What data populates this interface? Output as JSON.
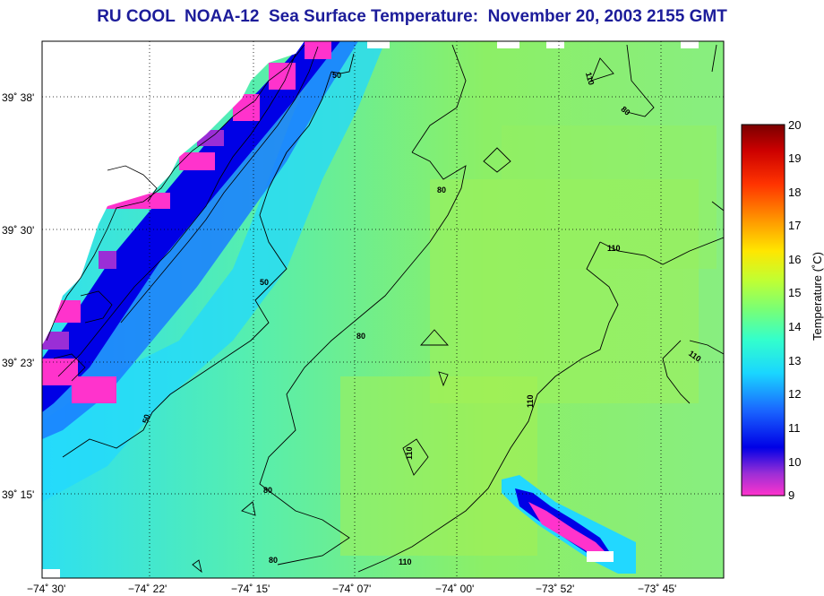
{
  "title": "RU COOL  NOAA-12  Sea Surface Temperature:  November 20, 2003 2155 GMT",
  "lat_labels": [
    "39˚ 38'",
    "39˚ 30'",
    "39˚ 23'",
    "39˚ 15'"
  ],
  "lon_labels": [
    "−74˚ 30'",
    "−74˚ 22'",
    "−74˚ 15'",
    "−74˚ 07'",
    "−74˚ 00'",
    "−73˚ 52'",
    "−73˚ 45'"
  ],
  "colorbar": {
    "ticks": [
      "20",
      "19",
      "18",
      "17",
      "16",
      "15",
      "14",
      "13",
      "12",
      "11",
      "10",
      "9"
    ],
    "label": "Temperature (˚C)",
    "colors": [
      "#ff33cc",
      "#9a2ed6",
      "#0000e6",
      "#1a66ff",
      "#1ad6ff",
      "#33ffcc",
      "#77ff77",
      "#c0ff33",
      "#ffe600",
      "#ff9900",
      "#ff3300",
      "#cc0000",
      "#7a0000"
    ]
  },
  "contour_labels": {
    "c50": "50",
    "c80": "80",
    "c110": "110"
  },
  "ocean_colors": {
    "land": "#ffffff",
    "near_shore": "#0000e6",
    "shelf": "#33e6e0",
    "open": "#66ee88",
    "warm": "#b8f040"
  }
}
